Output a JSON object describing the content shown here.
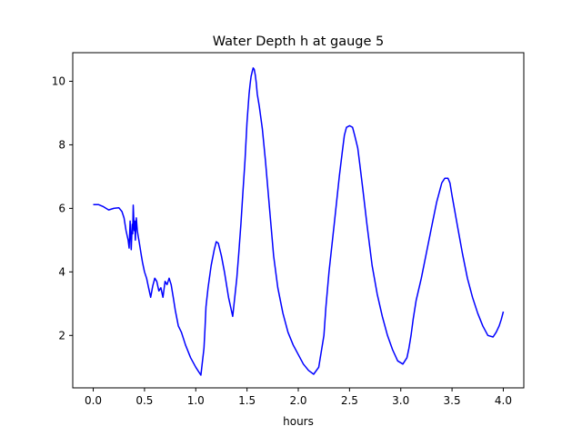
{
  "chart_data": {
    "type": "line",
    "title": "Water Depth h at gauge 5",
    "xlabel": "hours",
    "ylabel": "",
    "xlim": [
      -0.2,
      4.2
    ],
    "ylim": [
      0.35,
      10.9
    ],
    "xticks": [
      0.0,
      0.5,
      1.0,
      1.5,
      2.0,
      2.5,
      3.0,
      3.5,
      4.0
    ],
    "xtick_labels": [
      "0.0",
      "0.5",
      "1.0",
      "1.5",
      "2.0",
      "2.5",
      "3.0",
      "3.5",
      "4.0"
    ],
    "yticks": [
      2,
      4,
      6,
      8,
      10
    ],
    "ytick_labels": [
      "2",
      "4",
      "6",
      "8",
      "10"
    ],
    "grid": false,
    "series": [
      {
        "color": "#0000ff",
        "x": [
          0.0,
          0.05,
          0.1,
          0.15,
          0.2,
          0.25,
          0.28,
          0.3,
          0.32,
          0.34,
          0.35,
          0.36,
          0.37,
          0.38,
          0.385,
          0.39,
          0.4,
          0.405,
          0.41,
          0.42,
          0.43,
          0.44,
          0.45,
          0.46,
          0.47,
          0.48,
          0.5,
          0.52,
          0.54,
          0.56,
          0.58,
          0.6,
          0.62,
          0.64,
          0.66,
          0.68,
          0.7,
          0.72,
          0.74,
          0.76,
          0.78,
          0.8,
          0.83,
          0.86,
          0.9,
          0.95,
          1.0,
          1.05,
          1.08,
          1.09,
          1.1,
          1.12,
          1.15,
          1.18,
          1.2,
          1.22,
          1.25,
          1.28,
          1.32,
          1.36,
          1.4,
          1.42,
          1.44,
          1.46,
          1.48,
          1.5,
          1.52,
          1.53,
          1.54,
          1.55,
          1.56,
          1.57,
          1.58,
          1.59,
          1.6,
          1.62,
          1.65,
          1.68,
          1.72,
          1.76,
          1.8,
          1.85,
          1.9,
          1.95,
          2.0,
          2.05,
          2.1,
          2.15,
          2.2,
          2.25,
          2.27,
          2.3,
          2.35,
          2.4,
          2.43,
          2.45,
          2.47,
          2.5,
          2.53,
          2.55,
          2.58,
          2.6,
          2.63,
          2.67,
          2.72,
          2.77,
          2.82,
          2.87,
          2.92,
          2.97,
          3.02,
          3.06,
          3.08,
          3.1,
          3.12,
          3.15,
          3.2,
          3.25,
          3.3,
          3.35,
          3.4,
          3.43,
          3.46,
          3.48,
          3.5,
          3.55,
          3.6,
          3.65,
          3.7,
          3.75,
          3.8,
          3.85,
          3.9,
          3.93,
          3.96,
          3.98,
          4.0
        ],
        "y": [
          6.12,
          6.12,
          6.05,
          5.95,
          6.0,
          6.02,
          5.9,
          5.7,
          5.3,
          5.0,
          4.75,
          5.6,
          4.7,
          5.5,
          5.2,
          6.1,
          5.3,
          5.6,
          5.0,
          5.7,
          5.3,
          5.1,
          4.9,
          4.7,
          4.5,
          4.3,
          4.0,
          3.8,
          3.5,
          3.2,
          3.55,
          3.8,
          3.7,
          3.4,
          3.5,
          3.2,
          3.7,
          3.6,
          3.8,
          3.6,
          3.2,
          2.8,
          2.3,
          2.1,
          1.7,
          1.3,
          1.0,
          0.75,
          1.6,
          2.2,
          2.9,
          3.5,
          4.2,
          4.7,
          4.95,
          4.9,
          4.5,
          4.0,
          3.2,
          2.6,
          3.8,
          4.6,
          5.5,
          6.5,
          7.5,
          8.7,
          9.6,
          9.9,
          10.15,
          10.3,
          10.42,
          10.38,
          10.2,
          9.95,
          9.6,
          9.2,
          8.5,
          7.5,
          6.0,
          4.5,
          3.5,
          2.7,
          2.1,
          1.7,
          1.4,
          1.1,
          0.9,
          0.78,
          1.0,
          2.0,
          2.9,
          4.0,
          5.5,
          7.0,
          7.8,
          8.3,
          8.55,
          8.6,
          8.55,
          8.3,
          7.9,
          7.4,
          6.6,
          5.5,
          4.2,
          3.3,
          2.6,
          2.0,
          1.55,
          1.2,
          1.1,
          1.3,
          1.6,
          2.0,
          2.5,
          3.1,
          3.8,
          4.6,
          5.4,
          6.2,
          6.8,
          6.95,
          6.95,
          6.8,
          6.4,
          5.5,
          4.6,
          3.8,
          3.2,
          2.7,
          2.3,
          2.0,
          1.95,
          2.1,
          2.3,
          2.5,
          2.75
        ]
      }
    ]
  }
}
